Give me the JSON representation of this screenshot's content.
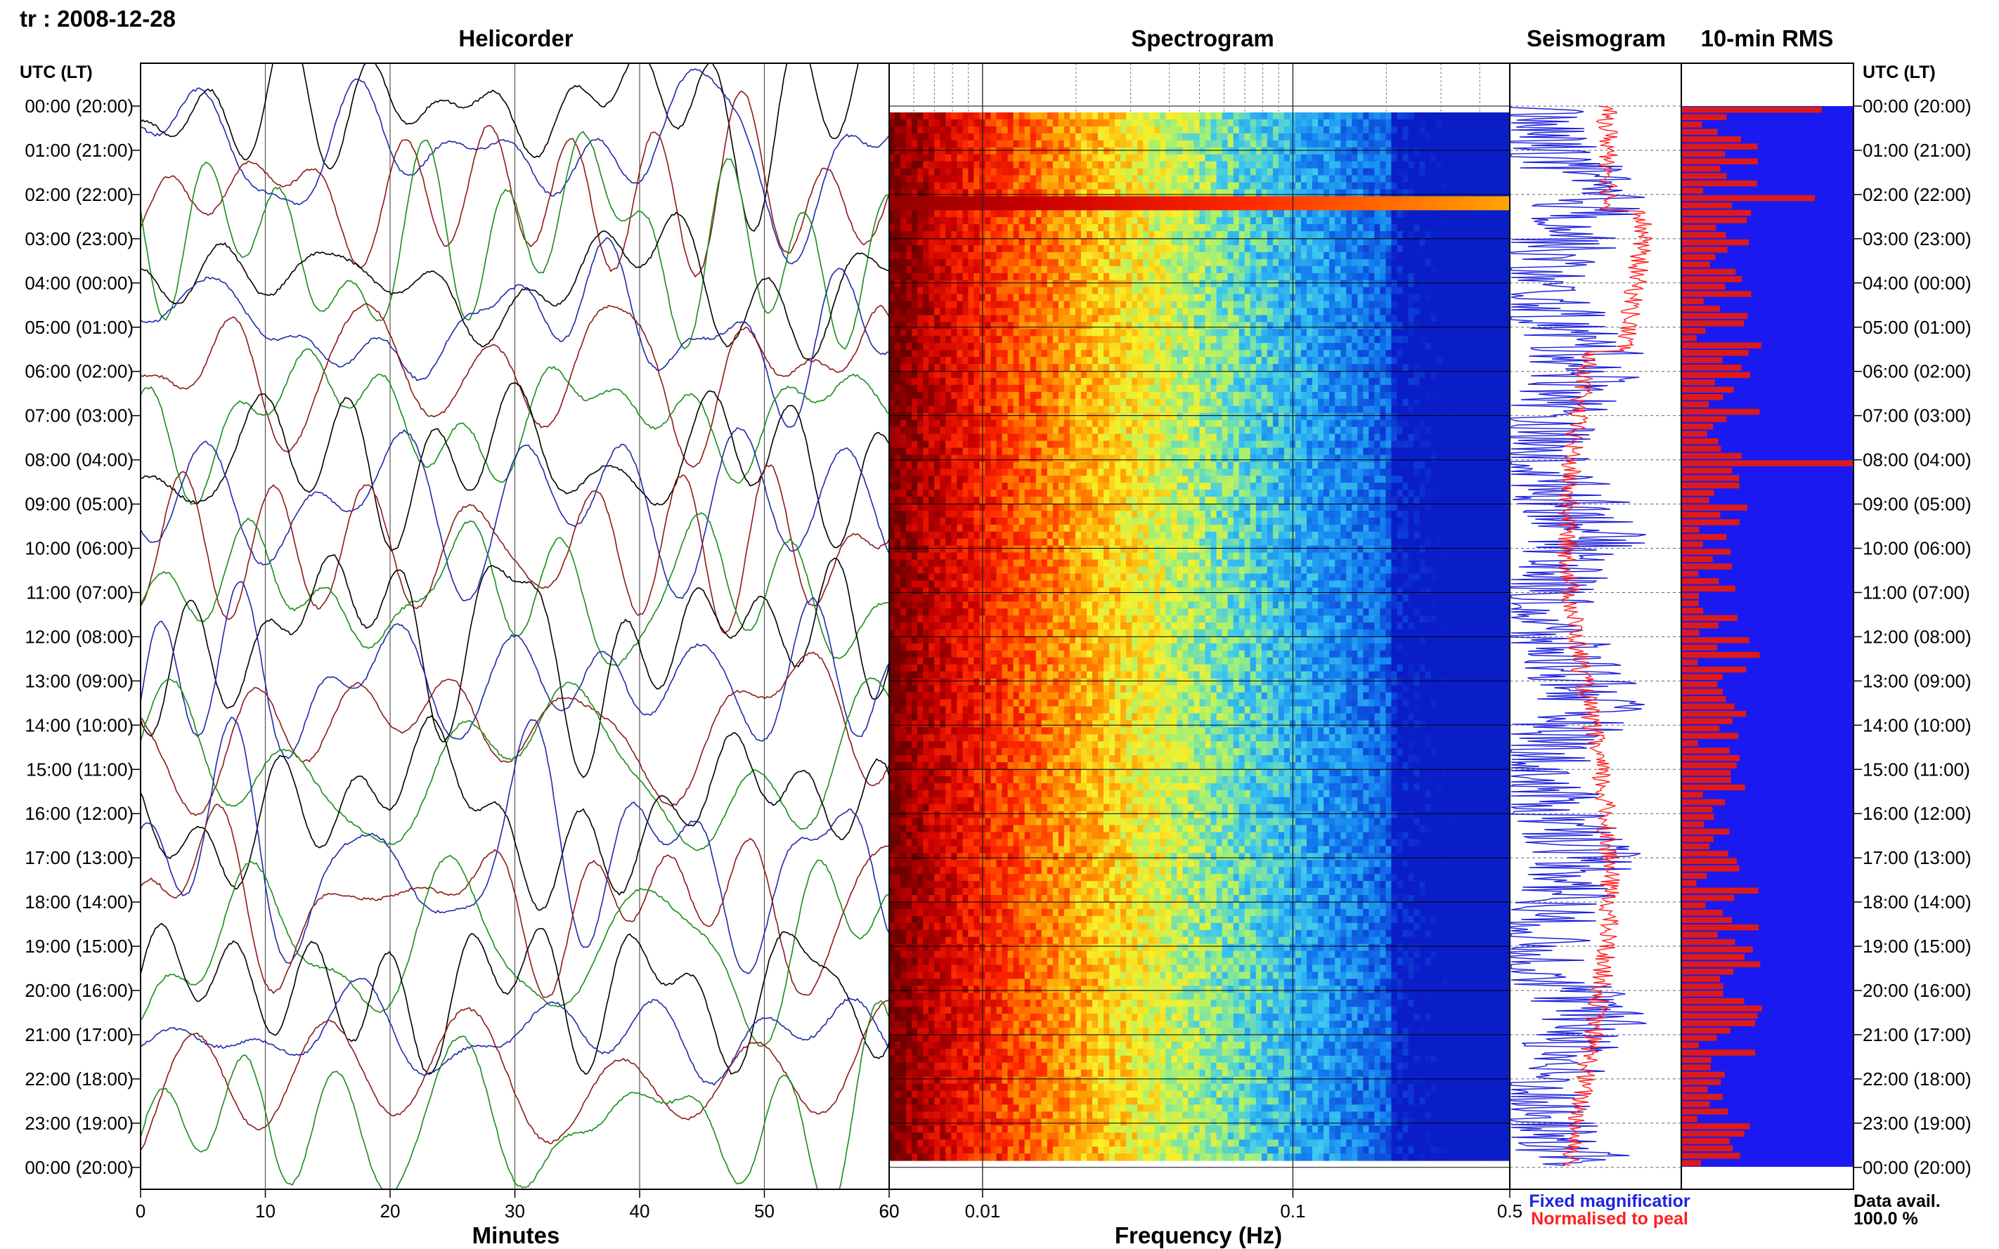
{
  "header": {
    "station_label": "tr : 2008-12-28"
  },
  "colors": {
    "black_trace": "#000000",
    "blue_trace": "#1f2aa8",
    "red_trace": "#8c1a1a",
    "green_trace": "#1a8c1a",
    "seis_blue": "#1e22dd",
    "seis_red": "#ff2020",
    "rms_bg": "#1a1af0",
    "rms_bar": "#dd1a1a"
  },
  "chart_data": [
    {
      "type": "line",
      "title": "Helicorder",
      "xlabel": "Minutes",
      "ylabel": "UTC (LT)",
      "xlim": [
        0,
        60
      ],
      "x_ticks": [
        "0",
        "10",
        "20",
        "30",
        "40",
        "50",
        "60"
      ],
      "rows": [
        "00:00 (20:00)",
        "01:00 (21:00)",
        "02:00 (22:00)",
        "03:00 (23:00)",
        "04:00 (00:00)",
        "05:00 (01:00)",
        "06:00 (02:00)",
        "07:00 (03:00)",
        "08:00 (04:00)",
        "09:00 (05:00)",
        "10:00 (06:00)",
        "11:00 (07:00)",
        "12:00 (08:00)",
        "13:00 (09:00)",
        "14:00 (10:00)",
        "15:00 (11:00)",
        "16:00 (12:00)",
        "17:00 (13:00)",
        "18:00 (14:00)",
        "19:00 (15:00)",
        "20:00 (16:00)",
        "21:00 (17:00)",
        "22:00 (18:00)",
        "23:00 (19:00)",
        "00:00 (20:00)"
      ],
      "trace_color_cycle": [
        "black",
        "blue",
        "red",
        "green"
      ]
    },
    {
      "type": "heatmap",
      "title": "Spectrogram",
      "xlabel": "Frequency (Hz)",
      "x_scale": "log",
      "xlim": [
        0.005,
        0.5
      ],
      "x_ticks": [
        "0.01",
        "0.1",
        "0.5"
      ],
      "colormap": "jet, low frequency = dark red, high frequency = blue",
      "highlight_hour": "02:00"
    },
    {
      "type": "line",
      "title": "Seismogram",
      "legend": [
        "Fixed magnificatior",
        "Normalised to peal"
      ],
      "series": [
        {
          "name": "Fixed magnificatior",
          "color": "blue"
        },
        {
          "name": "Normalised to peal",
          "color": "red"
        }
      ]
    },
    {
      "type": "bar",
      "title": "10-min RMS",
      "orientation": "horizontal",
      "ylabel": "UTC (LT)",
      "footer": [
        "Data avail.",
        "100.0 %"
      ],
      "peak_hour": "08:00"
    }
  ]
}
